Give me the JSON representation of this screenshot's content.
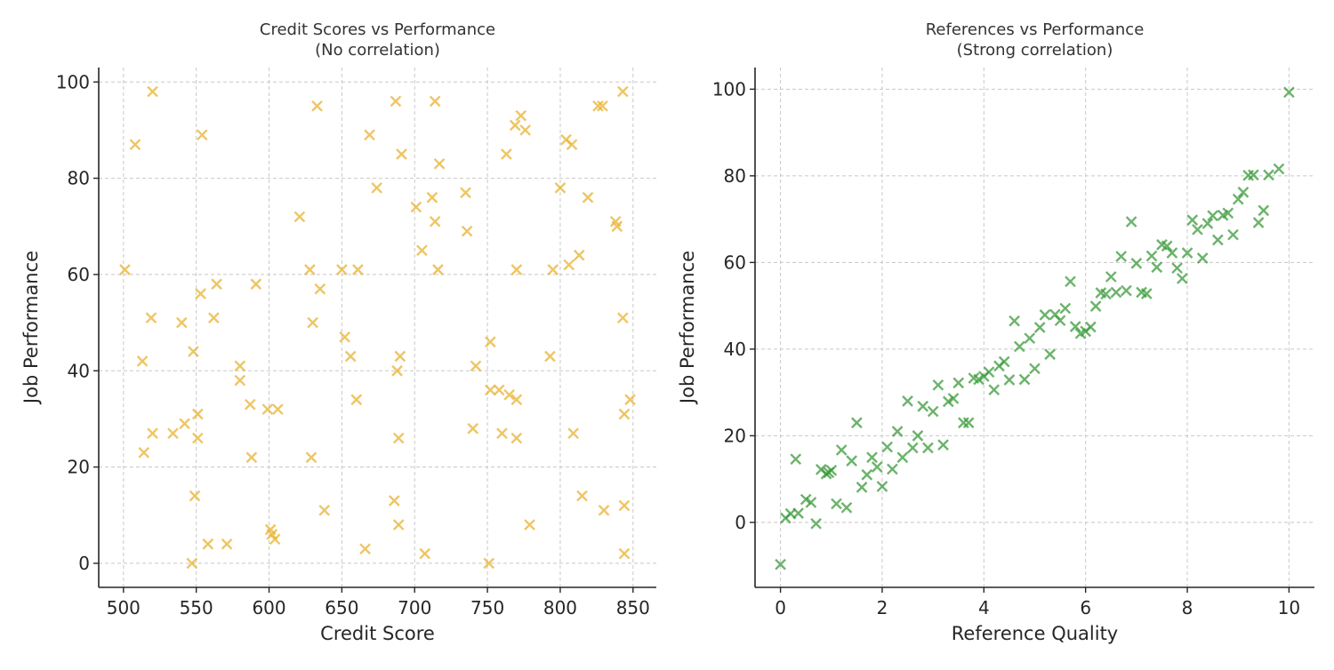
{
  "chart_data": [
    {
      "type": "scatter",
      "title": [
        "Credit Scores vs Performance",
        "(No correlation)"
      ],
      "xlabel": "Credit Score",
      "ylabel": "Job Performance",
      "xlim": [
        483,
        866
      ],
      "ylim": [
        -5,
        103
      ],
      "xticks": [
        500,
        550,
        600,
        650,
        700,
        750,
        800,
        850
      ],
      "yticks": [
        0,
        20,
        40,
        60,
        80,
        100
      ],
      "grid": true,
      "marker": "x",
      "color": "#E8B130",
      "points": [
        [
          501,
          61
        ],
        [
          508,
          87
        ],
        [
          513,
          42
        ],
        [
          514,
          23
        ],
        [
          520,
          98
        ],
        [
          519,
          51
        ],
        [
          520,
          27
        ],
        [
          534,
          27
        ],
        [
          540,
          50
        ],
        [
          542,
          29
        ],
        [
          547,
          0
        ],
        [
          548,
          44
        ],
        [
          549,
          14
        ],
        [
          551,
          31
        ],
        [
          551,
          26
        ],
        [
          553,
          56
        ],
        [
          554,
          89
        ],
        [
          558,
          4
        ],
        [
          562,
          51
        ],
        [
          564,
          58
        ],
        [
          571,
          4
        ],
        [
          580,
          41
        ],
        [
          580,
          38
        ],
        [
          587,
          33
        ],
        [
          588,
          22
        ],
        [
          591,
          58
        ],
        [
          599,
          32
        ],
        [
          601,
          7
        ],
        [
          602,
          6
        ],
        [
          604,
          5
        ],
        [
          606,
          32
        ],
        [
          621,
          72
        ],
        [
          628,
          61
        ],
        [
          629,
          22
        ],
        [
          630,
          50
        ],
        [
          633,
          95
        ],
        [
          635,
          57
        ],
        [
          638,
          11
        ],
        [
          650,
          61
        ],
        [
          652,
          47
        ],
        [
          656,
          43
        ],
        [
          660,
          34
        ],
        [
          661,
          61
        ],
        [
          666,
          3
        ],
        [
          669,
          89
        ],
        [
          674,
          78
        ],
        [
          686,
          13
        ],
        [
          687,
          96
        ],
        [
          688,
          40
        ],
        [
          689,
          8
        ],
        [
          689,
          26
        ],
        [
          690,
          43
        ],
        [
          691,
          85
        ],
        [
          701,
          74
        ],
        [
          705,
          65
        ],
        [
          707,
          2
        ],
        [
          712,
          76
        ],
        [
          714,
          96
        ],
        [
          714,
          71
        ],
        [
          716,
          61
        ],
        [
          717,
          83
        ],
        [
          735,
          77
        ],
        [
          736,
          69
        ],
        [
          740,
          28
        ],
        [
          742,
          41
        ],
        [
          751,
          0
        ],
        [
          752,
          46
        ],
        [
          752,
          36
        ],
        [
          758,
          36
        ],
        [
          760,
          27
        ],
        [
          763,
          85
        ],
        [
          765,
          35
        ],
        [
          769,
          91
        ],
        [
          770,
          61
        ],
        [
          770,
          34
        ],
        [
          770,
          26
        ],
        [
          773,
          93
        ],
        [
          776,
          90
        ],
        [
          779,
          8
        ],
        [
          793,
          43
        ],
        [
          795,
          61
        ],
        [
          800,
          78
        ],
        [
          804,
          88
        ],
        [
          806,
          62
        ],
        [
          808,
          87
        ],
        [
          809,
          27
        ],
        [
          813,
          64
        ],
        [
          815,
          14
        ],
        [
          819,
          76
        ],
        [
          826,
          95
        ],
        [
          829,
          95
        ],
        [
          830,
          11
        ],
        [
          838,
          71
        ],
        [
          839,
          70
        ],
        [
          843,
          98
        ],
        [
          843,
          51
        ],
        [
          844,
          31
        ],
        [
          844,
          12
        ],
        [
          844,
          2
        ],
        [
          848,
          34
        ]
      ]
    },
    {
      "type": "scatter",
      "title": [
        "References vs Performance",
        "(Strong correlation)"
      ],
      "xlabel": "Reference Quality",
      "ylabel": "Job Performance",
      "xlim": [
        -0.5,
        10.5
      ],
      "ylim": [
        -15,
        105
      ],
      "xticks": [
        0,
        2,
        4,
        6,
        8,
        10
      ],
      "yticks": [
        0,
        20,
        40,
        60,
        80,
        100
      ],
      "grid": true,
      "marker": "x",
      "color": "#3A9A3A",
      "points": [
        [
          0.0,
          -9.7
        ],
        [
          0.1,
          1.0
        ],
        [
          0.2,
          2.0
        ],
        [
          0.3,
          14.6
        ],
        [
          0.35,
          2.1
        ],
        [
          0.5,
          5.3
        ],
        [
          0.6,
          4.6
        ],
        [
          0.7,
          -0.3
        ],
        [
          0.8,
          12.2
        ],
        [
          0.9,
          11.2
        ],
        [
          0.95,
          11.5
        ],
        [
          1.0,
          12.0
        ],
        [
          1.1,
          4.3
        ],
        [
          1.2,
          16.7
        ],
        [
          1.3,
          3.4
        ],
        [
          1.4,
          14.2
        ],
        [
          1.5,
          23.0
        ],
        [
          1.6,
          8.1
        ],
        [
          1.7,
          11.0
        ],
        [
          1.8,
          15.0
        ],
        [
          1.9,
          12.8
        ],
        [
          2.0,
          8.3
        ],
        [
          2.1,
          17.4
        ],
        [
          2.2,
          12.3
        ],
        [
          2.3,
          21.0
        ],
        [
          2.4,
          15.0
        ],
        [
          2.5,
          28.0
        ],
        [
          2.6,
          17.2
        ],
        [
          2.7,
          20.0
        ],
        [
          2.8,
          26.8
        ],
        [
          2.9,
          17.2
        ],
        [
          3.0,
          25.6
        ],
        [
          3.1,
          31.7
        ],
        [
          3.2,
          17.9
        ],
        [
          3.3,
          27.9
        ],
        [
          3.4,
          28.6
        ],
        [
          3.5,
          32.2
        ],
        [
          3.6,
          23.0
        ],
        [
          3.7,
          23.0
        ],
        [
          3.8,
          33.3
        ],
        [
          3.9,
          33.0
        ],
        [
          4.0,
          33.7
        ],
        [
          4.1,
          34.7
        ],
        [
          4.2,
          30.6
        ],
        [
          4.3,
          36.1
        ],
        [
          4.4,
          37.1
        ],
        [
          4.5,
          32.9
        ],
        [
          4.6,
          46.5
        ],
        [
          4.7,
          40.6
        ],
        [
          4.8,
          33.0
        ],
        [
          4.9,
          42.5
        ],
        [
          5.0,
          35.5
        ],
        [
          5.1,
          45.0
        ],
        [
          5.2,
          47.9
        ],
        [
          5.3,
          38.8
        ],
        [
          5.4,
          48.0
        ],
        [
          5.5,
          46.6
        ],
        [
          5.6,
          49.4
        ],
        [
          5.7,
          55.6
        ],
        [
          5.8,
          45.2
        ],
        [
          5.9,
          43.6
        ],
        [
          6.0,
          44.1
        ],
        [
          6.1,
          45.1
        ],
        [
          6.2,
          49.9
        ],
        [
          6.3,
          53.0
        ],
        [
          6.4,
          52.7
        ],
        [
          6.5,
          56.7
        ],
        [
          6.6,
          53.1
        ],
        [
          6.7,
          61.4
        ],
        [
          6.8,
          53.5
        ],
        [
          6.9,
          69.4
        ],
        [
          7.0,
          59.8
        ],
        [
          7.1,
          53.1
        ],
        [
          7.2,
          52.8
        ],
        [
          7.3,
          61.5
        ],
        [
          7.4,
          58.9
        ],
        [
          7.5,
          64.1
        ],
        [
          7.6,
          63.8
        ],
        [
          7.7,
          62.2
        ],
        [
          7.8,
          58.7
        ],
        [
          7.9,
          56.3
        ],
        [
          8.0,
          62.2
        ],
        [
          8.1,
          69.8
        ],
        [
          8.2,
          67.6
        ],
        [
          8.3,
          61.0
        ],
        [
          8.4,
          69.0
        ],
        [
          8.5,
          70.8
        ],
        [
          8.6,
          65.2
        ],
        [
          8.7,
          70.9
        ],
        [
          8.8,
          71.4
        ],
        [
          8.9,
          66.4
        ],
        [
          9.0,
          74.6
        ],
        [
          9.1,
          76.2
        ],
        [
          9.2,
          80.1
        ],
        [
          9.3,
          80.2
        ],
        [
          9.4,
          69.2
        ],
        [
          9.5,
          72.0
        ],
        [
          9.6,
          80.2
        ],
        [
          9.8,
          81.6
        ],
        [
          10.0,
          99.3
        ]
      ]
    }
  ]
}
